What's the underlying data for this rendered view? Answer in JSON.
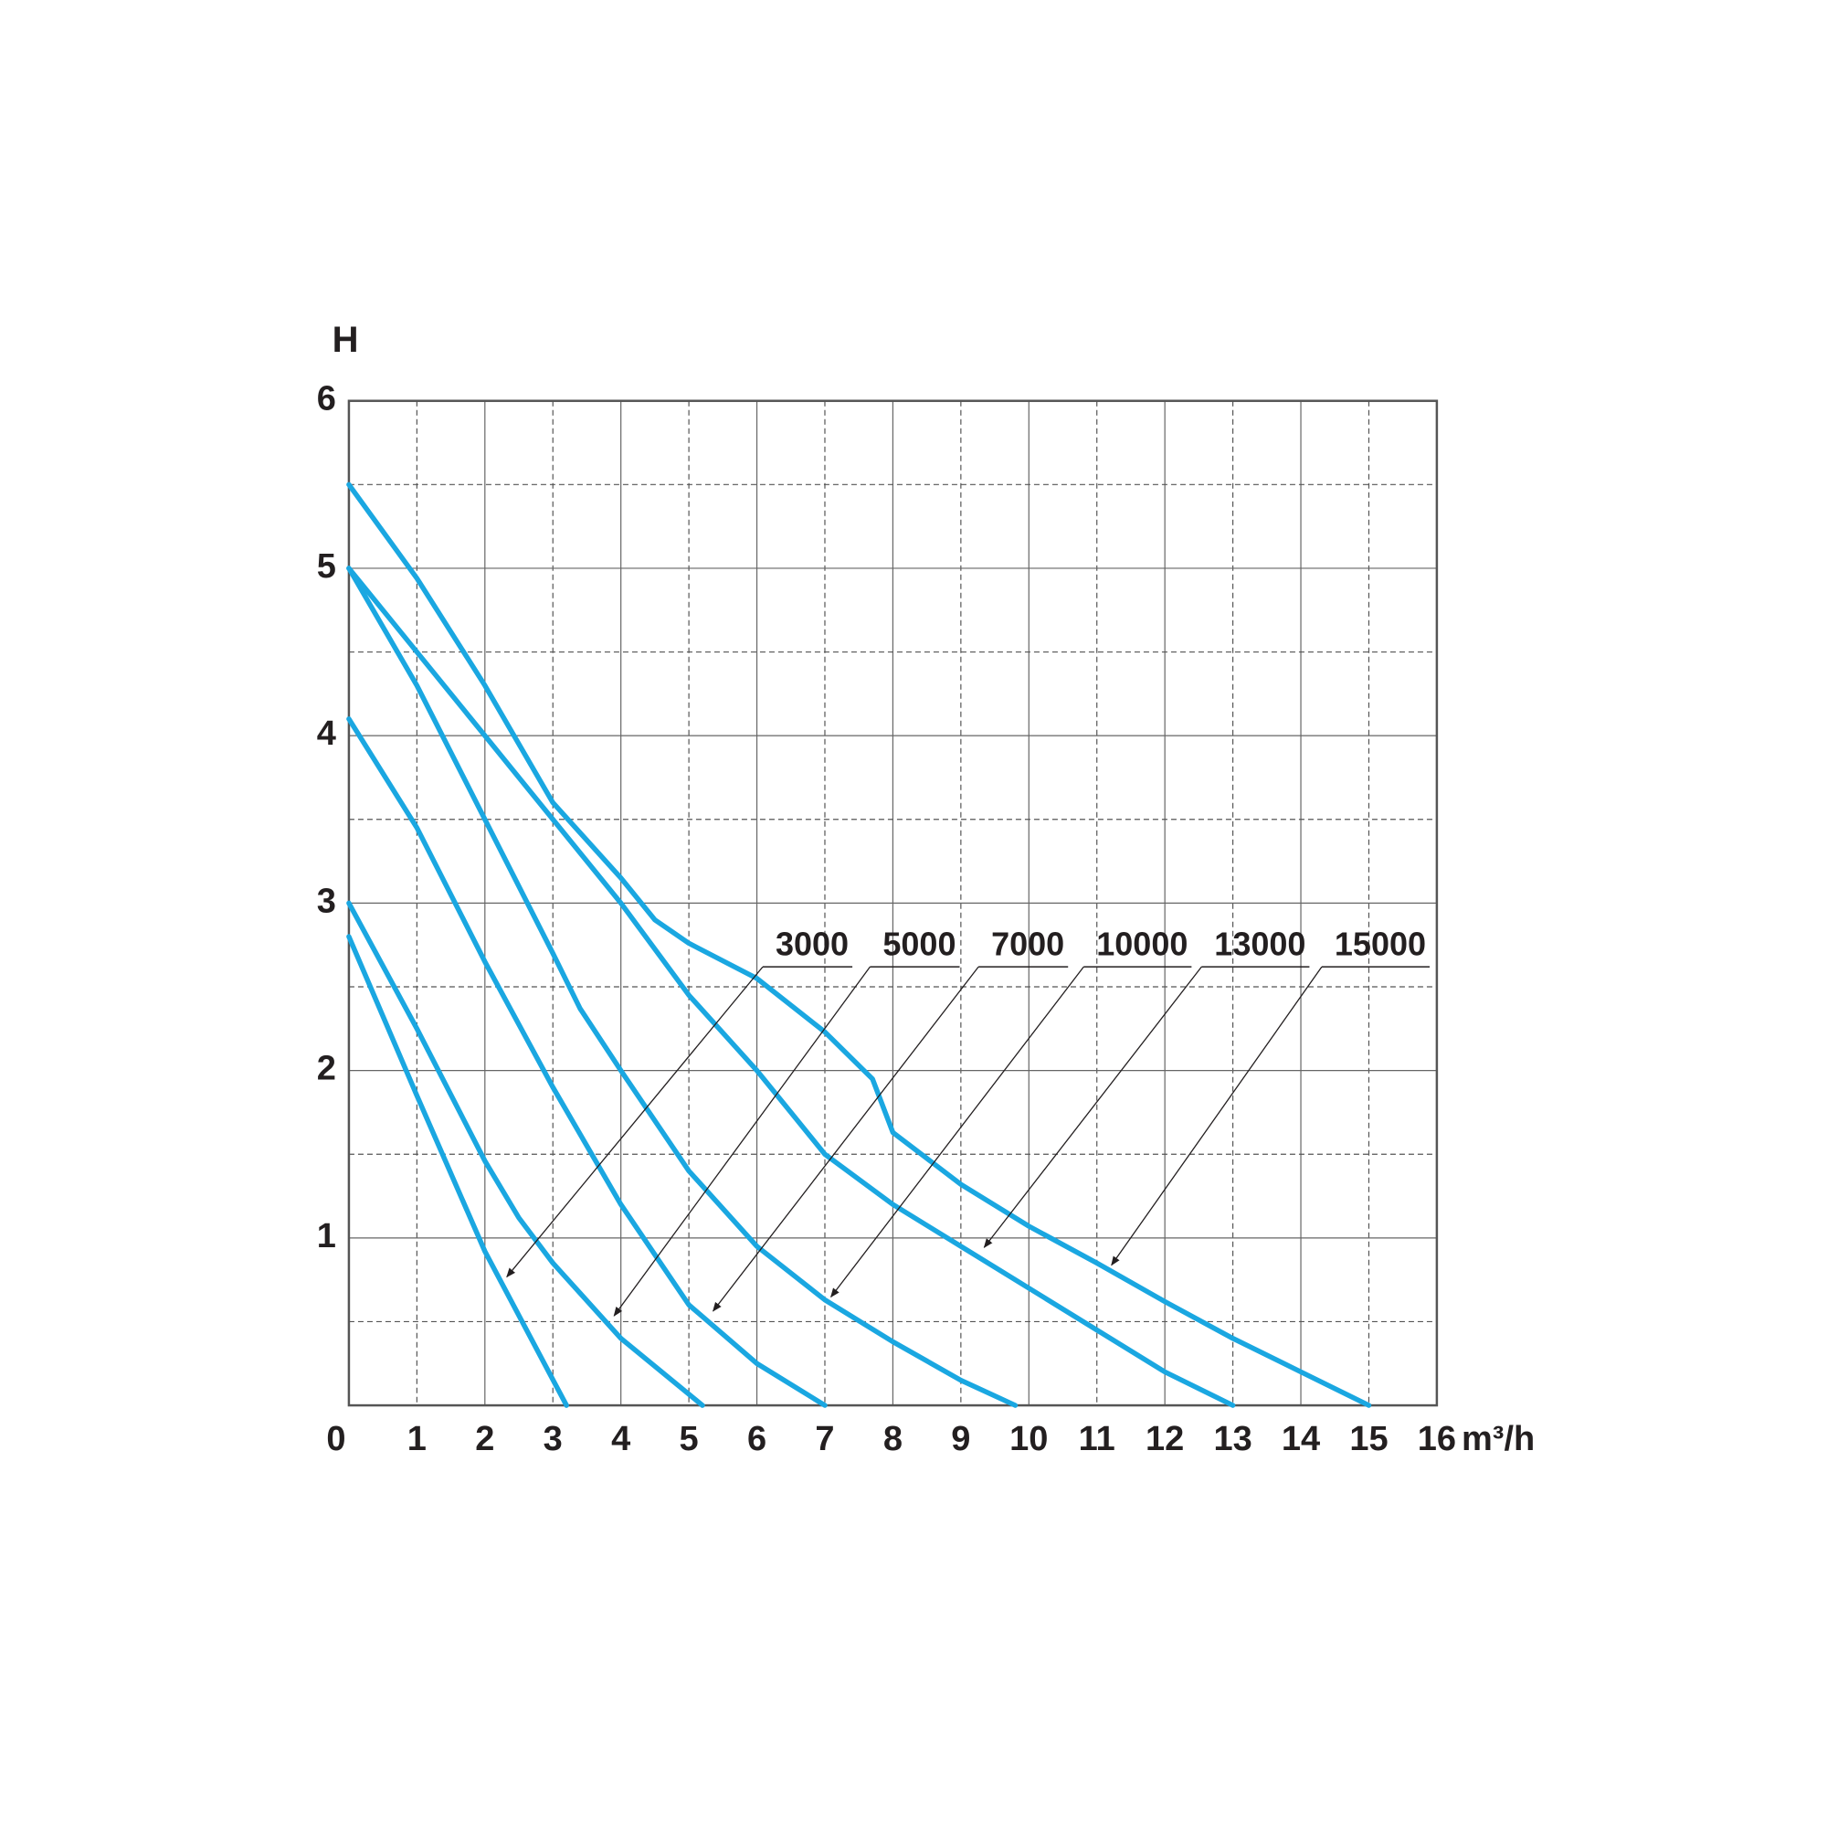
{
  "chart_data": {
    "type": "line",
    "y_label": "H",
    "x_label": "m³/h",
    "xlim": [
      0,
      16
    ],
    "ylim": [
      0,
      6
    ],
    "xticks": [
      0,
      1,
      2,
      3,
      4,
      5,
      6,
      7,
      8,
      9,
      10,
      11,
      12,
      13,
      14,
      15,
      16
    ],
    "yticks": [
      1,
      2,
      3,
      4,
      5,
      6
    ],
    "yminor_ticks": [
      0.5,
      1.5,
      2.5,
      3.5,
      4.5,
      5.5
    ],
    "grid": true,
    "series": [
      {
        "name": "3000",
        "color": "#1aa7e1",
        "x": [
          0,
          1,
          2,
          3.2
        ],
        "values": [
          2.8,
          1.85,
          0.92,
          0
        ]
      },
      {
        "name": "5000",
        "color": "#1aa7e1",
        "x": [
          0,
          1,
          2,
          2.5,
          3,
          4,
          5.2
        ],
        "values": [
          3.0,
          2.25,
          1.46,
          1.12,
          0.85,
          0.4,
          0
        ]
      },
      {
        "name": "7000",
        "color": "#1aa7e1",
        "x": [
          0,
          1,
          2,
          3,
          4,
          5,
          6,
          7
        ],
        "values": [
          4.1,
          3.45,
          2.65,
          1.9,
          1.2,
          0.6,
          0.25,
          0
        ]
      },
      {
        "name": "10000",
        "color": "#1aa7e1",
        "x": [
          0,
          1,
          2,
          3,
          3.4,
          4,
          5,
          6,
          7,
          8,
          9,
          9.8
        ],
        "values": [
          5.0,
          4.3,
          3.5,
          2.7,
          2.37,
          2.0,
          1.4,
          0.95,
          0.63,
          0.38,
          0.15,
          0
        ]
      },
      {
        "name": "13000",
        "color": "#1aa7e1",
        "x": [
          0,
          1,
          2,
          3,
          4,
          5,
          6,
          6.5,
          7,
          8,
          9,
          10,
          11,
          12,
          13
        ],
        "values": [
          5.0,
          4.5,
          4.0,
          3.5,
          3.0,
          2.45,
          2.0,
          1.75,
          1.5,
          1.2,
          0.95,
          0.7,
          0.45,
          0.2,
          0
        ]
      },
      {
        "name": "15000",
        "color": "#1aa7e1",
        "x": [
          0,
          1,
          2,
          3,
          4,
          4.5,
          5,
          6,
          7,
          7.7,
          8,
          9,
          10,
          11,
          12,
          13,
          14,
          15
        ],
        "values": [
          5.5,
          4.94,
          4.3,
          3.6,
          3.15,
          2.9,
          2.76,
          2.55,
          2.23,
          1.95,
          1.63,
          1.32,
          1.07,
          0.85,
          0.62,
          0.4,
          0.2,
          0
        ]
      }
    ]
  }
}
